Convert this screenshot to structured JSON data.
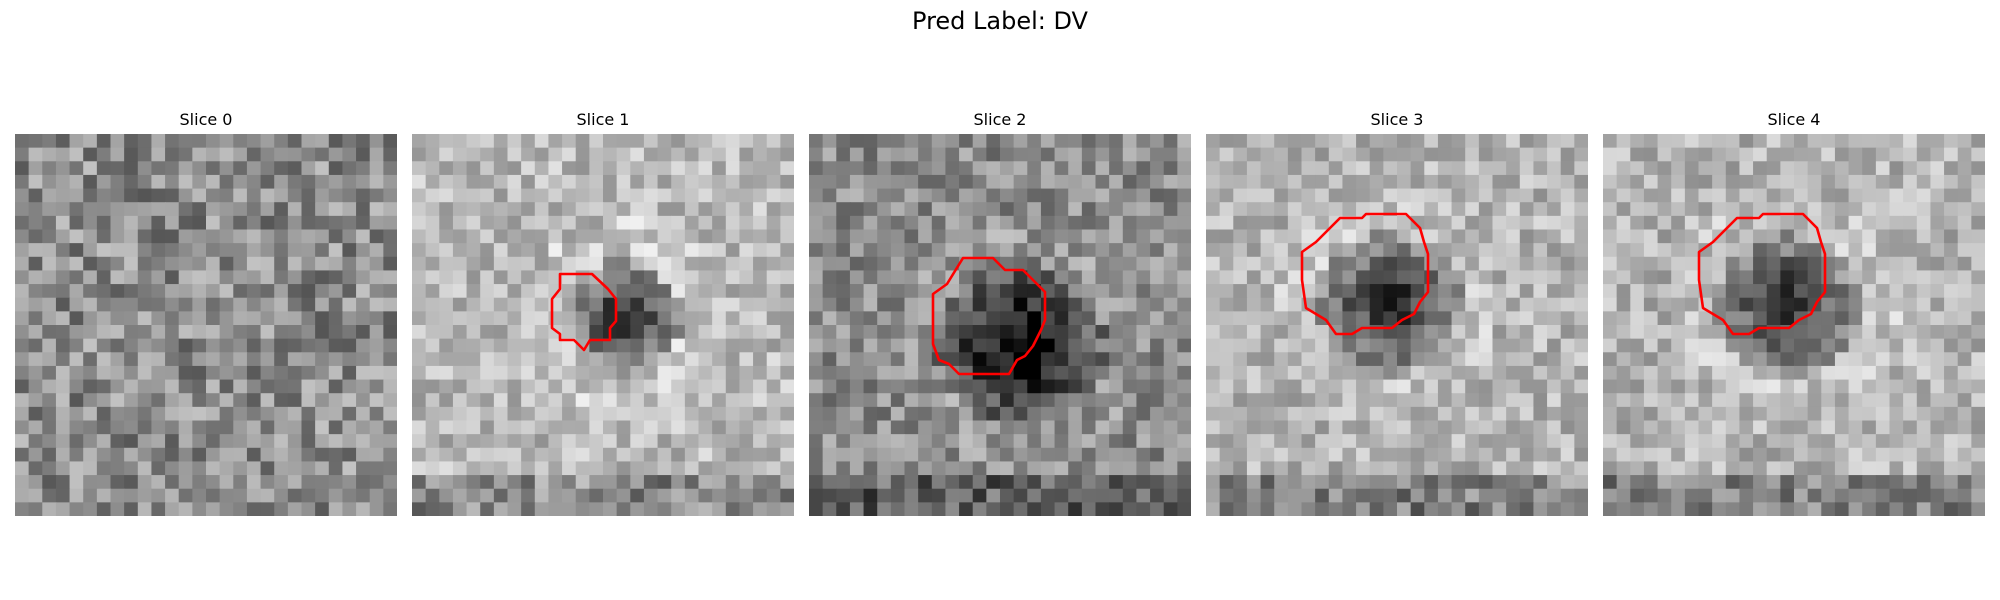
{
  "figure": {
    "title": "Pred Label: DV"
  },
  "slices": [
    {
      "title": "Slice 0",
      "contour": false,
      "texture": "noise",
      "seed": 11
    },
    {
      "title": "Slice 1",
      "contour": true,
      "texture": "blob-small",
      "seed": 23
    },
    {
      "title": "Slice 2",
      "contour": true,
      "texture": "blob-large",
      "seed": 37
    },
    {
      "title": "Slice 3",
      "contour": true,
      "texture": "blob-medium",
      "seed": 53
    },
    {
      "title": "Slice 4",
      "contour": true,
      "texture": "blob-medium",
      "seed": 71
    }
  ],
  "colors": {
    "contour": "#ff0000",
    "background": "#ffffff"
  }
}
